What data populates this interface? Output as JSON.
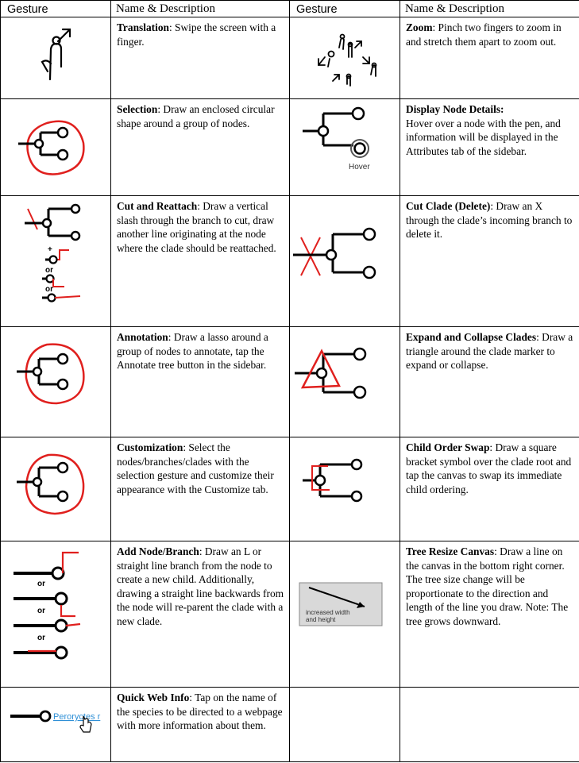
{
  "headers": {
    "gesture_1": "Gesture",
    "name_desc_1": "Name & Description",
    "gesture_2": "Gesture",
    "name_desc_2": "Name & Description"
  },
  "rows": [
    {
      "left": {
        "name": "Translation",
        "desc": ": Swipe the screen with a finger."
      },
      "right": {
        "name": "Zoom",
        "desc": ": Pinch two fingers to zoom in and stretch them apart to zoom out."
      }
    },
    {
      "left": {
        "name": "Selection",
        "desc": ": Draw an enclosed circular shape around a group of nodes."
      },
      "right": {
        "name": "Display Node Details:",
        "desc": " Hover over a node with the pen, and information will be displayed in the Attributes tab of the sidebar."
      }
    },
    {
      "left": {
        "name": "Cut and Reattach",
        "desc": ": Draw a vertical slash through the branch to cut, draw another line originating at the node where the clade should be reattached."
      },
      "right": {
        "name": "Cut Clade (Delete)",
        "desc": ": Draw an X through the clade’s incoming branch to delete it."
      }
    },
    {
      "left": {
        "name": "Annotation",
        "desc": ": Draw a lasso around a group of nodes to annotate, tap the Annotate tree button in the sidebar."
      },
      "right": {
        "name": "Expand and Collapse Clades",
        "desc": ": Draw a triangle around the clade marker to expand or collapse."
      }
    },
    {
      "left": {
        "name": "Customization",
        "desc": ": Select the nodes/branches/clades with the selection gesture and customize their appearance with the Customize tab."
      },
      "right": {
        "name": "Child Order Swap",
        "desc": ": Draw a square bracket symbol over the clade root and tap the canvas to swap its immediate child ordering."
      }
    },
    {
      "left": {
        "name": "Add Node/Branch",
        "desc": ": Draw an L or straight line branch from the node to create a new child. Additionally, drawing a straight line backwards from the node will re-parent the clade with a new clade."
      },
      "right": {
        "name": "Tree Resize Canvas",
        "desc": ": Draw a line on the canvas in the bottom right corner. The tree size change will be proportionate to the direction and length of the line you draw. Note: The tree grows downward."
      }
    },
    {
      "left": {
        "name": "Quick Web Info",
        "desc": ": Tap on the name of the species to be directed to a webpage with more information about them."
      }
    }
  ],
  "gesture_labels": {
    "hover": "Hover",
    "or": "or",
    "plus": "+",
    "resize_box_line1": "increased width",
    "resize_box_line2": "and height",
    "species_link": "Peroryctes r"
  },
  "colors": {
    "ink": "#000000",
    "stroke_red": "#e0201e",
    "link_blue": "#2e8fd6",
    "resize_box_fill": "#d9d9d9"
  }
}
